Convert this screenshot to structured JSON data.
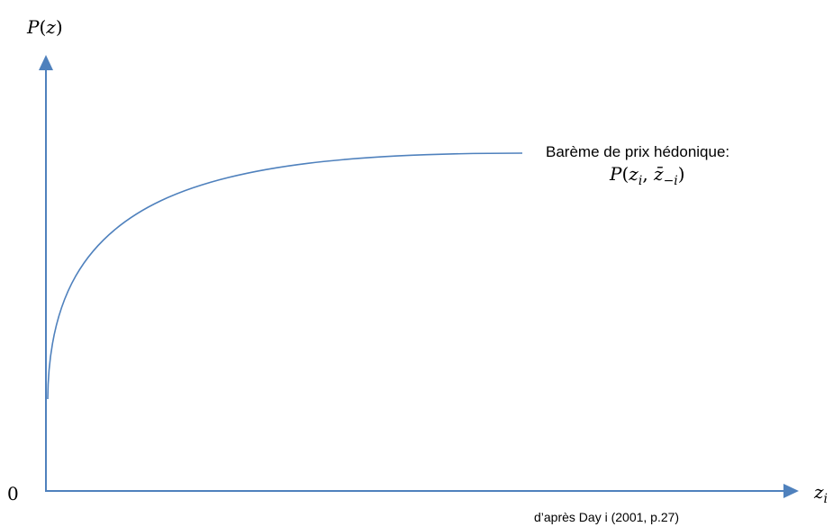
{
  "y_axis": {
    "label_func": "P",
    "label_arg": "z"
  },
  "x_axis": {
    "label_var": "z",
    "label_sub": "i"
  },
  "origin_label": "0",
  "curve": {
    "label_line1": "Barème de prix hédonique:",
    "label_line2": {
      "func": "P",
      "var1": "z",
      "sub1": "i",
      "var2": "z̄",
      "sub2": "−i"
    }
  },
  "source": "d’après Day i (2001, p.27)",
  "colors": {
    "axis": "#4f81bd",
    "curve": "#4f81bd",
    "text": "#000000"
  }
}
